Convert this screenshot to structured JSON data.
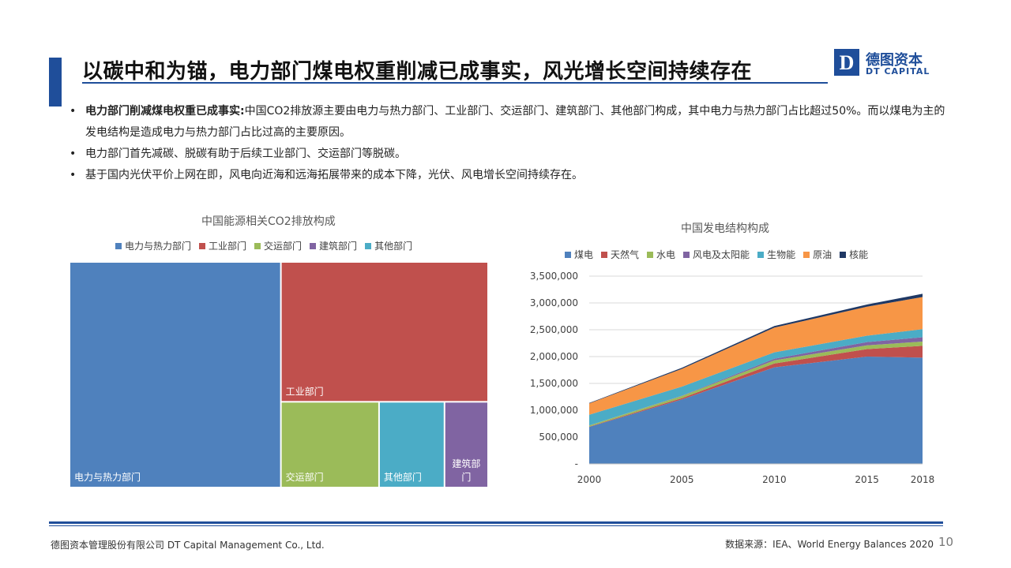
{
  "header": {
    "title": "以碳中和为锚，电力部门煤电权重削减已成事实，风光增长空间持续存在"
  },
  "logo": {
    "cn": "德图资本",
    "en": "DT CAPITAL",
    "mark_letter": "D",
    "color": "#1f4e9a"
  },
  "bullets": [
    {
      "bold": "电力部门削减煤电权重已成事实:",
      "text": "中国CO2排放源主要由电力与热力部门、工业部门、交运部门、建筑部门、其他部门构成，其中电力与热力部门占比超过50%。而以煤电为主的发电结构是造成电力与热力部门占比过高的主要原因。"
    },
    {
      "bold": "",
      "text": "电力部门首先减碳、脱碳有助于后续工业部门、交运部门等脱碳。"
    },
    {
      "bold": "",
      "text": "基于国内光伏平价上网在即，风电向近海和远海拓展带来的成本下降，光伏、风电增长空间持续存在。"
    }
  ],
  "chart_data": [
    {
      "type": "treemap",
      "title": "中国能源相关CO2排放构成",
      "legend_position": "top",
      "categories": [
        "电力与热力部门",
        "工业部门",
        "交运部门",
        "建筑部门",
        "其他部门"
      ],
      "values": [
        51,
        31,
        9,
        4,
        6
      ],
      "colors": [
        "#4f81bd",
        "#c0504d",
        "#9bbb59",
        "#8064a2",
        "#4bacc6"
      ],
      "box_labels": [
        "电力与热力部门",
        "工业部门",
        "交运部门",
        "建筑部门",
        "其他部门"
      ]
    },
    {
      "type": "area",
      "stacked": true,
      "title": "中国发电结构构成",
      "legend_position": "top",
      "x": [
        2000,
        2005,
        2010,
        2015,
        2018
      ],
      "ylim": [
        0,
        3500000
      ],
      "yticks": [
        "-",
        "500,000",
        "1,000,000",
        "1,500,000",
        "2,000,000",
        "2,500,000",
        "3,000,000",
        "3,500,000"
      ],
      "grid": true,
      "series": [
        {
          "name": "煤电",
          "color": "#4f81bd",
          "values": [
            690000,
            1200000,
            1800000,
            2000000,
            1980000
          ]
        },
        {
          "name": "天然气",
          "color": "#c0504d",
          "values": [
            5000,
            25000,
            70000,
            140000,
            220000
          ]
        },
        {
          "name": "水电",
          "color": "#9bbb59",
          "values": [
            20000,
            40000,
            60000,
            70000,
            80000
          ]
        },
        {
          "name": "风电及太阳能",
          "color": "#8064a2",
          "values": [
            1000,
            5000,
            30000,
            60000,
            80000
          ]
        },
        {
          "name": "生物能",
          "color": "#4bacc6",
          "values": [
            200000,
            170000,
            120000,
            120000,
            150000
          ]
        },
        {
          "name": "原油",
          "color": "#f79646",
          "values": [
            210000,
            330000,
            460000,
            540000,
            600000
          ]
        },
        {
          "name": "核能",
          "color": "#1f3864",
          "values": [
            10000,
            20000,
            30000,
            40000,
            60000
          ]
        }
      ]
    }
  ],
  "footer": {
    "company": "德图资本管理股份有限公司  DT Capital Management  Co., Ltd.",
    "source": "数据来源：IEA、World  Energy Balances 2020",
    "page": "10"
  }
}
